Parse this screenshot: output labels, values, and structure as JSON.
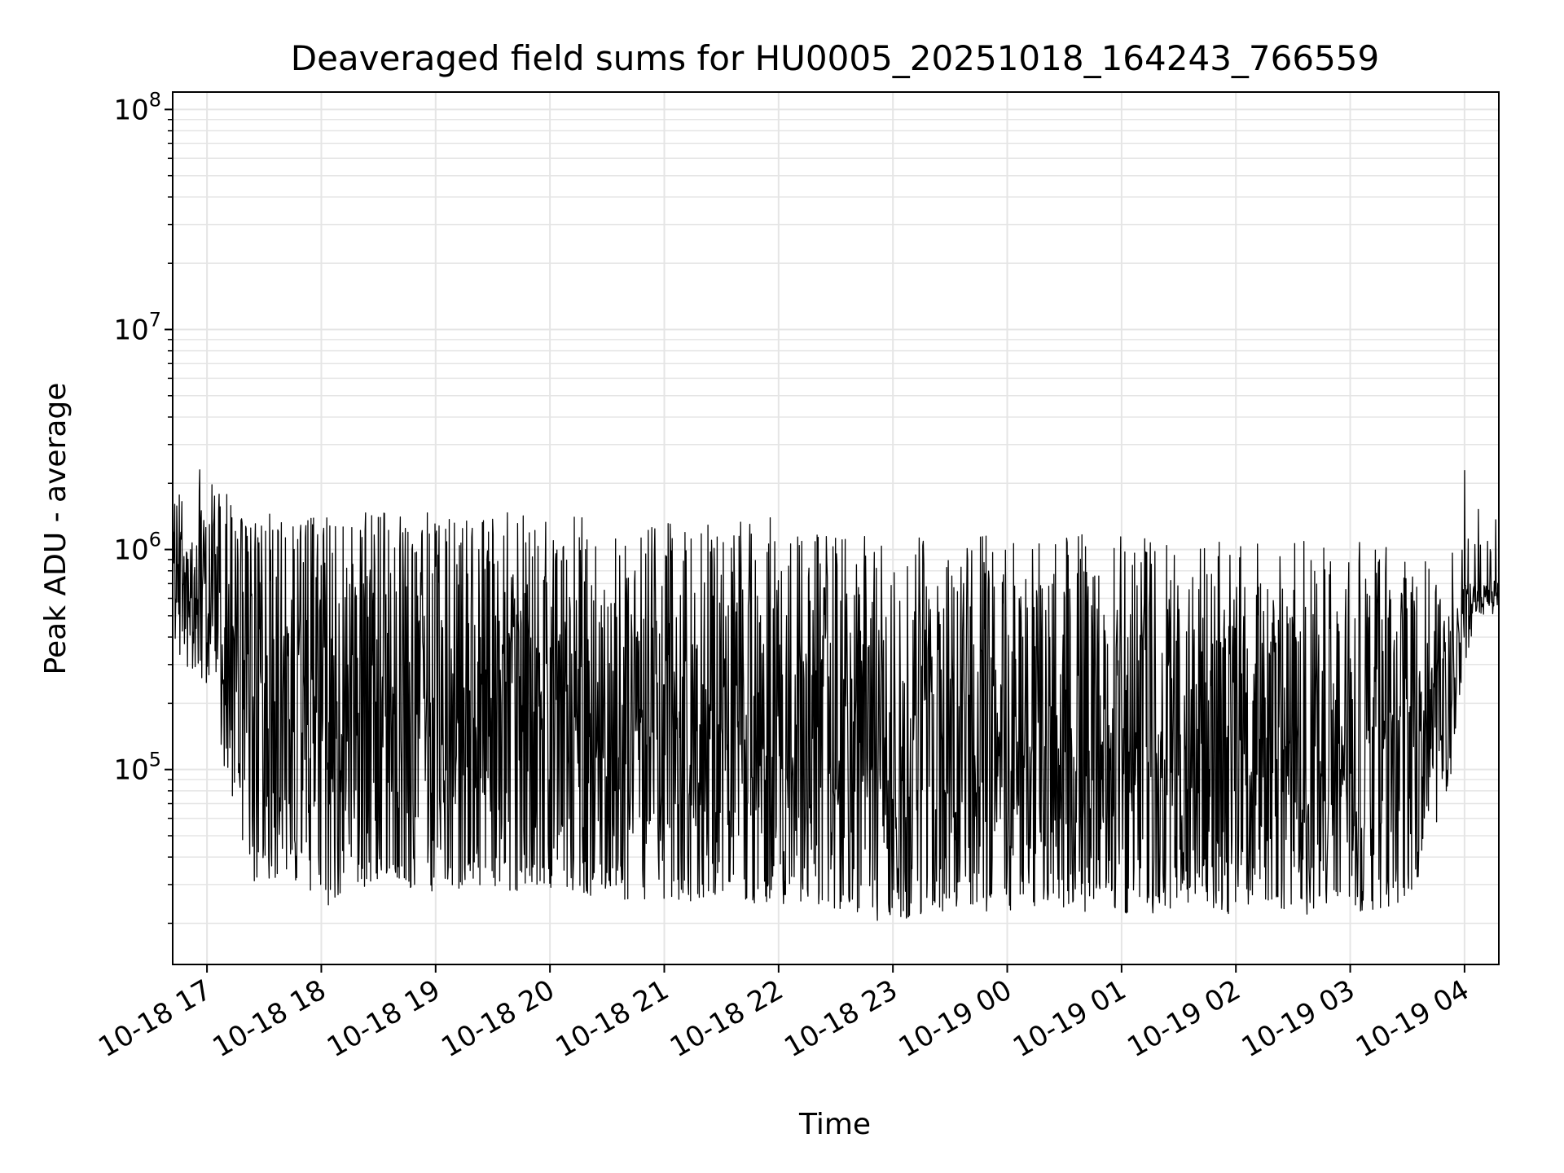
{
  "chart_data": {
    "type": "line",
    "title": "Deaveraged field sums for HU0005_20251018_164243_766559",
    "xlabel": "Time",
    "ylabel": "Peak ADU - average",
    "y_scale": "log",
    "ylim": [
      13000,
      120000000
    ],
    "xlim": [
      "2025-10-18 16:42",
      "2025-10-19 04:18"
    ],
    "grid": true,
    "line_color": "#000000",
    "grid_color": "#e5e5e5",
    "x_ticks": [
      {
        "t": "2025-10-18 17:00",
        "label": "10-18 17"
      },
      {
        "t": "2025-10-18 18:00",
        "label": "10-18 18"
      },
      {
        "t": "2025-10-18 19:00",
        "label": "10-18 19"
      },
      {
        "t": "2025-10-18 20:00",
        "label": "10-18 20"
      },
      {
        "t": "2025-10-18 21:00",
        "label": "10-18 21"
      },
      {
        "t": "2025-10-18 22:00",
        "label": "10-18 22"
      },
      {
        "t": "2025-10-18 23:00",
        "label": "10-18 23"
      },
      {
        "t": "2025-10-19 00:00",
        "label": "10-19 00"
      },
      {
        "t": "2025-10-19 01:00",
        "label": "10-19 01"
      },
      {
        "t": "2025-10-19 02:00",
        "label": "10-19 02"
      },
      {
        "t": "2025-10-19 03:00",
        "label": "10-19 03"
      },
      {
        "t": "2025-10-19 04:00",
        "label": "10-19 04"
      }
    ],
    "y_ticks": [
      {
        "value": 100000,
        "base": "10",
        "exp": "5"
      },
      {
        "value": 1000000,
        "base": "10",
        "exp": "6"
      },
      {
        "value": 10000000,
        "base": "10",
        "exp": "7"
      },
      {
        "value": 100000000,
        "base": "10",
        "exp": "8"
      }
    ],
    "series": [
      {
        "x": [
          "2025-10-18 16:42",
          "2025-10-18 16:50",
          "2025-10-18 17:00",
          "2025-10-18 17:10",
          "2025-10-18 17:20",
          "2025-10-18 17:30",
          "2025-10-18 17:45",
          "2025-10-18 18:00",
          "2025-10-18 18:15",
          "2025-10-18 18:30",
          "2025-10-18 18:45",
          "2025-10-18 19:00",
          "2025-10-18 19:30",
          "2025-10-18 20:00",
          "2025-10-18 20:30",
          "2025-10-18 21:00",
          "2025-10-18 21:30",
          "2025-10-18 22:00",
          "2025-10-18 22:30",
          "2025-10-18 23:00",
          "2025-10-18 23:30",
          "2025-10-19 00:00",
          "2025-10-19 00:30",
          "2025-10-19 01:00",
          "2025-10-19 01:30",
          "2025-10-19 02:00",
          "2025-10-19 02:30",
          "2025-10-19 03:00",
          "2025-10-19 03:30",
          "2025-10-19 03:50",
          "2025-10-19 04:00",
          "2025-10-19 04:10",
          "2025-10-19 04:18"
        ],
        "max": [
          1500000,
          2500000,
          2200000,
          1800000,
          1500000,
          1500000,
          1500000,
          1500000,
          1500000,
          1500000,
          1400000,
          1500000,
          1500000,
          1500000,
          1400000,
          1400000,
          1400000,
          1400000,
          1200000,
          1100000,
          1200000,
          1200000,
          1200000,
          1200000,
          1100000,
          1100000,
          1100000,
          1100000,
          1000000,
          800000,
          2400000,
          1600000,
          1500000
        ],
        "min": [
          380000,
          280000,
          220000,
          90000,
          32000,
          30000,
          32000,
          22000,
          30000,
          28000,
          28000,
          28000,
          28000,
          28000,
          26000,
          25000,
          25000,
          24000,
          22000,
          20000,
          22000,
          23000,
          23000,
          22000,
          22000,
          22000,
          22000,
          22000,
          25000,
          60000,
          300000,
          500000,
          500000
        ],
        "typical_low": [
          600000,
          450000,
          350000,
          180000,
          60000,
          45000,
          45000,
          40000,
          40000,
          38000,
          38000,
          38000,
          37000,
          36000,
          35000,
          35000,
          34000,
          33000,
          32000,
          31000,
          31000,
          32000,
          32000,
          31000,
          31000,
          31000,
          30000,
          30000,
          32000,
          90000,
          450000,
          550000,
          550000
        ],
        "typical_high": [
          1200000,
          1700000,
          1500000,
          1300000,
          1200000,
          1200000,
          1200000,
          1100000,
          1100000,
          1100000,
          1000000,
          1000000,
          1000000,
          1000000,
          900000,
          850000,
          800000,
          750000,
          700000,
          650000,
          650000,
          650000,
          650000,
          650000,
          650000,
          600000,
          600000,
          600000,
          600000,
          550000,
          700000,
          700000,
          750000
        ]
      }
    ]
  }
}
